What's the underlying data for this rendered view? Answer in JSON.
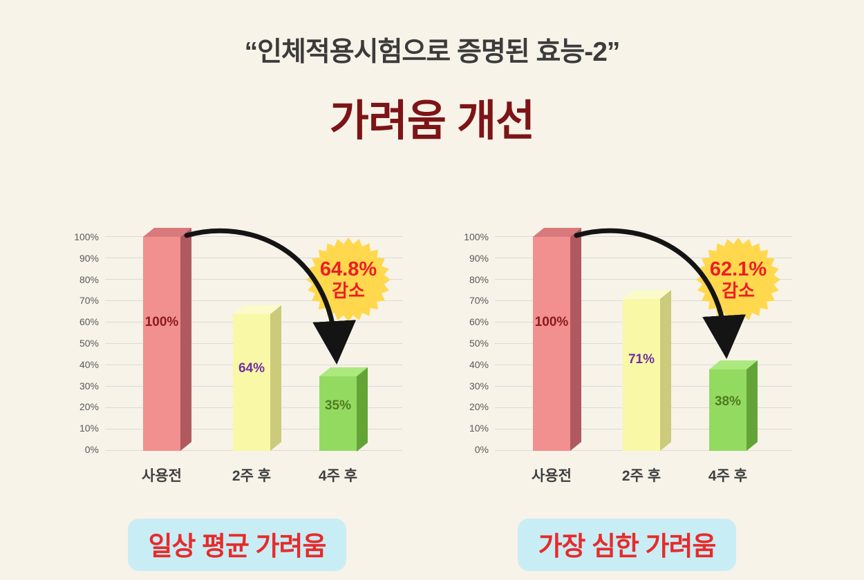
{
  "header": {
    "subtitle": "“인체적용시험으로 증명된 효능-2”",
    "title": "가려움 개선"
  },
  "colors": {
    "background": "#F7F3E8",
    "title_text": "#7D1417",
    "subtitle_text": "#3B3B3B",
    "badge_fill": "#FFD84D",
    "badge_text": "#EE1C25",
    "caption_bg": "#C9EDF5",
    "caption_text": "#E82A2A",
    "bar_before": "#F2908F",
    "bar_week2": "#F8F8A6",
    "bar_week4": "#93DA61",
    "gridline": "#D9D9D9",
    "arrow": "#141414"
  },
  "chart_data": [
    {
      "type": "bar",
      "title": "일상 평균 가려움",
      "categories": [
        "사용전",
        "2주 후",
        "4주 후"
      ],
      "values": [
        100,
        64,
        35
      ],
      "value_labels": [
        "100%",
        "64%",
        "35%"
      ],
      "badge_percent": "64.8%",
      "badge_label": "감소",
      "ylim": [
        0,
        100
      ],
      "y_ticks": [
        "100%",
        "90%",
        "80%",
        "70%",
        "60%",
        "50%",
        "40%",
        "30%",
        "20%",
        "10%",
        "0%"
      ],
      "grid": true,
      "legend": "none"
    },
    {
      "type": "bar",
      "title": "가장 심한 가려움",
      "categories": [
        "사용전",
        "2주 후",
        "4주 후"
      ],
      "values": [
        100,
        71,
        38
      ],
      "value_labels": [
        "100%",
        "71%",
        "38%"
      ],
      "badge_percent": "62.1%",
      "badge_label": "감소",
      "ylim": [
        0,
        100
      ],
      "y_ticks": [
        "100%",
        "90%",
        "80%",
        "70%",
        "60%",
        "50%",
        "40%",
        "30%",
        "20%",
        "10%",
        "0%"
      ],
      "grid": true,
      "legend": "none"
    }
  ]
}
